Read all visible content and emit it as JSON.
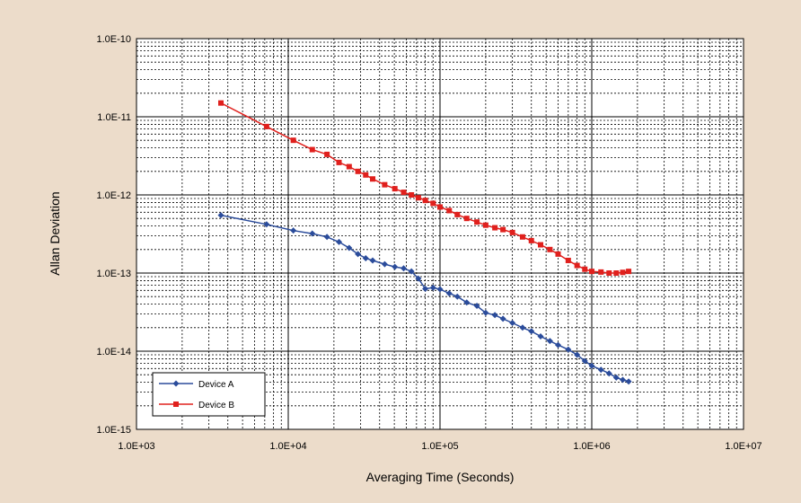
{
  "chart_data": {
    "type": "line",
    "xlabel": "Averaging Time (Seconds)",
    "ylabel": "Allan Deviation",
    "x_scale": "log",
    "y_scale": "log",
    "xlim": [
      1000,
      10000000
    ],
    "ylim": [
      1e-15,
      1e-10
    ],
    "x_ticks": [
      "1.0E+03",
      "1.0E+04",
      "1.0E+05",
      "1.0E+06",
      "1.0E+07"
    ],
    "y_ticks": [
      "1.0E-10",
      "1.0E-11",
      "1.0E-12",
      "1.0E-13",
      "1.0E-14",
      "1.0E-15"
    ],
    "grid": true,
    "legend_position": "bottom-left",
    "plot_background": "#ffffff",
    "page_background": "#ecdcca",
    "series": [
      {
        "name": "Device A",
        "color": "#2b4c9b",
        "marker": "diamond",
        "x": [
          3600,
          7200,
          10800,
          14400,
          18000,
          21600,
          25200,
          28800,
          32400,
          36000,
          43200,
          50400,
          57600,
          64800,
          72000,
          80000,
          90000,
          100000,
          115000,
          130000,
          150000,
          175000,
          200000,
          230000,
          260000,
          300000,
          350000,
          400000,
          460000,
          530000,
          600000,
          700000,
          800000,
          900000,
          1000000,
          1150000,
          1300000,
          1450000,
          1600000,
          1750000
        ],
        "y": [
          5.5e-13,
          4.2e-13,
          3.5e-13,
          3.2e-13,
          2.9e-13,
          2.5e-13,
          2.1e-13,
          1.75e-13,
          1.55e-13,
          1.45e-13,
          1.3e-13,
          1.2e-13,
          1.15e-13,
          1.05e-13,
          8.5e-14,
          6.3e-14,
          6.5e-14,
          6.2e-14,
          5.5e-14,
          5e-14,
          4.2e-14,
          3.8e-14,
          3.1e-14,
          2.9e-14,
          2.6e-14,
          2.3e-14,
          2e-14,
          1.8e-14,
          1.55e-14,
          1.35e-14,
          1.2e-14,
          1.05e-14,
          9e-15,
          7.5e-15,
          6.5e-15,
          5.8e-15,
          5.2e-15,
          4.6e-15,
          4.3e-15,
          4.1e-15
        ]
      },
      {
        "name": "Device B",
        "color": "#e0201d",
        "marker": "square",
        "x": [
          3600,
          7200,
          10800,
          14400,
          18000,
          21600,
          25200,
          28800,
          32400,
          36000,
          43200,
          50400,
          57600,
          64800,
          72000,
          80000,
          90000,
          100000,
          115000,
          130000,
          150000,
          175000,
          200000,
          230000,
          260000,
          300000,
          350000,
          400000,
          460000,
          530000,
          600000,
          700000,
          800000,
          900000,
          1000000,
          1150000,
          1300000,
          1450000,
          1600000,
          1750000
        ],
        "y": [
          1.5e-11,
          7.5e-12,
          5e-12,
          3.8e-12,
          3.3e-12,
          2.6e-12,
          2.3e-12,
          2e-12,
          1.8e-12,
          1.6e-12,
          1.35e-12,
          1.2e-12,
          1.08e-12,
          1e-12,
          9.2e-13,
          8.5e-13,
          7.8e-13,
          7e-13,
          6.3e-13,
          5.6e-13,
          5e-13,
          4.5e-13,
          4.1e-13,
          3.8e-13,
          3.6e-13,
          3.3e-13,
          2.9e-13,
          2.6e-13,
          2.3e-13,
          2e-13,
          1.75e-13,
          1.45e-13,
          1.25e-13,
          1.12e-13,
          1.05e-13,
          1.03e-13,
          1e-13,
          1e-13,
          1.02e-13,
          1.05e-13
        ]
      }
    ]
  }
}
